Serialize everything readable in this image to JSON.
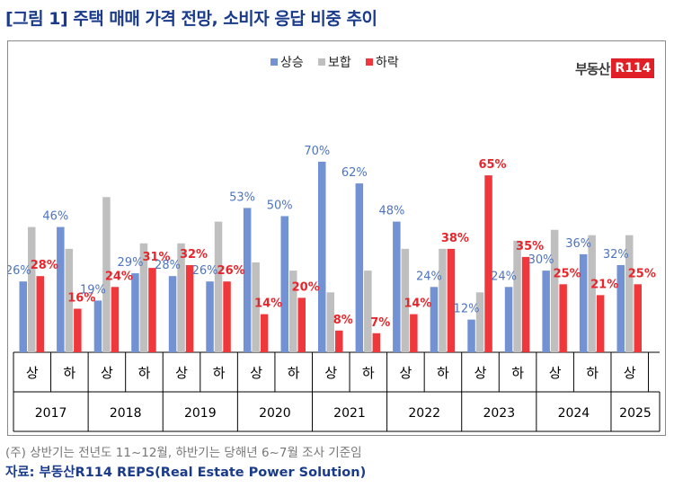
{
  "title": "[그림 1] 주택 매매 가격 전망, 소비자 응답 비중 추이",
  "logo": {
    "text": "부동산",
    "badge": "R114"
  },
  "note": "(주) 상반기는 전년도 11~12월, 하반기는 당해년 6~7월 조사 기준임",
  "source": "자료: 부동산R114 REPS(Real Estate Power Solution)",
  "colors": {
    "up": "#7392d4",
    "flat": "#bfbfbf",
    "down": "#f0383c",
    "up_label": "#4e74c0",
    "down_label": "#e8252b"
  },
  "chart_data": {
    "type": "bar",
    "years": [
      "2017",
      "2018",
      "2019",
      "2020",
      "2021",
      "2022",
      "2023",
      "2024",
      "2025"
    ],
    "categories": [
      "상",
      "하",
      "상",
      "하",
      "상",
      "하",
      "상",
      "하",
      "상",
      "하",
      "상",
      "하",
      "상",
      "하",
      "상",
      "하",
      "상"
    ],
    "series": [
      {
        "name": "상승",
        "values": [
          26,
          46,
          19,
          29,
          28,
          26,
          53,
          50,
          70,
          62,
          48,
          24,
          12,
          24,
          30,
          36,
          32
        ]
      },
      {
        "name": "보합",
        "values": [
          46,
          38,
          57,
          40,
          40,
          48,
          33,
          30,
          22,
          30,
          38,
          38,
          22,
          41,
          45,
          43,
          43
        ]
      },
      {
        "name": "하락",
        "values": [
          28,
          16,
          24,
          31,
          32,
          26,
          14,
          20,
          8,
          7,
          14,
          38,
          65,
          35,
          25,
          21,
          25
        ]
      }
    ],
    "labeled_series": [
      "상승",
      "하락"
    ],
    "legend_position": "top-center",
    "ylim": [
      0,
      70
    ]
  }
}
